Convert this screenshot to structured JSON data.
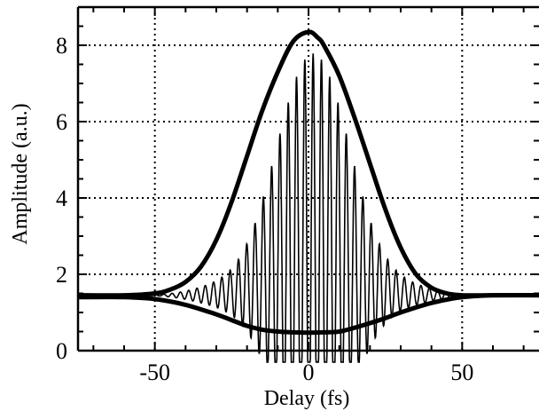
{
  "chart_data": {
    "type": "line",
    "title": "",
    "xlabel": "Delay  (fs)",
    "ylabel": "Amplitude  (a.u.)",
    "xlim": [
      -75,
      75
    ],
    "ylim": [
      0,
      9
    ],
    "x_ticks": [
      -50,
      0,
      50
    ],
    "y_ticks": [
      0,
      2,
      4,
      6,
      8
    ],
    "x_tick_labels": [
      "-50",
      "0",
      "50"
    ],
    "y_tick_labels": [
      "0",
      "2",
      "4",
      "6",
      "8"
    ],
    "grid": true,
    "grid_style": "dotted",
    "legend": "none",
    "color": "#000000",
    "series": [
      {
        "kind": "upper-envelope",
        "x": [
          -75,
          -60,
          -50,
          -45,
          -40,
          -35,
          -30,
          -25,
          -20,
          -15,
          -10,
          -5,
          0,
          3,
          5,
          10,
          15,
          20,
          25,
          30,
          35,
          40,
          45,
          50,
          60,
          75
        ],
        "y": [
          1.45,
          1.45,
          1.5,
          1.6,
          1.8,
          2.2,
          2.9,
          3.9,
          5.1,
          6.3,
          7.3,
          8.1,
          8.35,
          8.2,
          8.0,
          7.2,
          6.1,
          4.9,
          3.7,
          2.7,
          2.0,
          1.65,
          1.5,
          1.45,
          1.45,
          1.45
        ]
      },
      {
        "kind": "lower-envelope",
        "x": [
          -75,
          -60,
          -50,
          -40,
          -30,
          -25,
          -20,
          -15,
          -10,
          -5,
          0,
          5,
          10,
          15,
          20,
          25,
          30,
          40,
          50,
          60,
          75
        ],
        "y": [
          1.4,
          1.4,
          1.35,
          1.2,
          0.95,
          0.8,
          0.65,
          0.55,
          0.5,
          0.48,
          0.47,
          0.48,
          0.5,
          0.6,
          0.72,
          0.85,
          1.0,
          1.25,
          1.4,
          1.45,
          1.45
        ]
      },
      {
        "kind": "interferogram",
        "fringe_period_fs": 2.7,
        "baseline": 1.45,
        "center_fs": 1.5,
        "envelope_width_fs": 17,
        "peak_amplitude": 6.9
      }
    ]
  }
}
